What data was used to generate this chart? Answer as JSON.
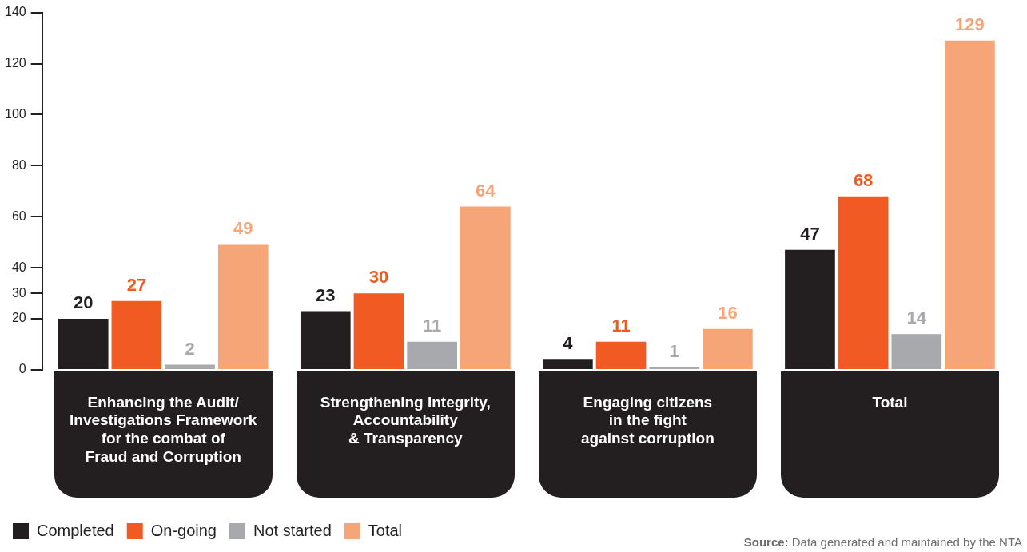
{
  "chart_data": {
    "type": "bar",
    "categories": [
      "Enhancing the Audit/\nInvestigations Framework\nfor the combat of\nFraud and Corruption",
      "Strengthening Integrity,\nAccountability\n& Transparency",
      "Engaging citizens\nin the fight\nagainst corruption",
      "Total"
    ],
    "series": [
      {
        "name": "Completed",
        "color": "#231f20",
        "values": [
          20,
          23,
          4,
          47
        ]
      },
      {
        "name": "On-going",
        "color": "#f15a22",
        "values": [
          27,
          30,
          11,
          68
        ]
      },
      {
        "name": "Not started",
        "color": "#a7a9ac",
        "values": [
          2,
          11,
          1,
          14
        ]
      },
      {
        "name": "Total",
        "color": "#f6a578",
        "values": [
          49,
          64,
          16,
          129
        ]
      }
    ],
    "ylim": [
      0,
      140
    ],
    "yticks": [
      0,
      20,
      30,
      40,
      60,
      80,
      100,
      120,
      140
    ],
    "grid": false,
    "legend": "bottom left",
    "data_labels": true,
    "annotations": [
      "Source: Data generated and maintained by the NTA"
    ]
  }
}
